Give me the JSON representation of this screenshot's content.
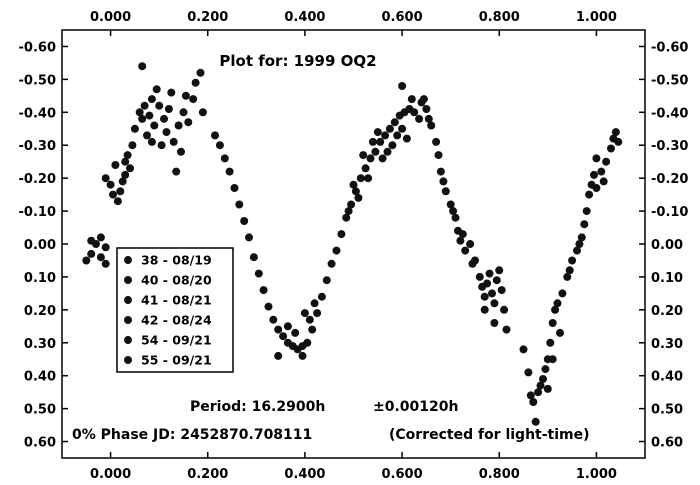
{
  "chart_data": {
    "type": "scatter",
    "title": "Plot for: 1999 OQ2",
    "xlabel": "",
    "ylabel": "",
    "xlim": [
      -0.1,
      1.1
    ],
    "ylim": [
      0.65,
      -0.65
    ],
    "y_inverted": true,
    "grid": false,
    "legend_position": "left-middle",
    "x_ticks": [
      "0.000",
      "0.200",
      "0.400",
      "0.600",
      "0.800",
      "1.000"
    ],
    "x_tick_values": [
      0.0,
      0.2,
      0.4,
      0.6,
      0.8,
      1.0
    ],
    "y_ticks": [
      "-0.60",
      "-0.50",
      "-0.40",
      "-0.30",
      "-0.20",
      "-0.10",
      "0.00",
      "0.10",
      "0.20",
      "0.30",
      "0.40",
      "0.50",
      "0.60"
    ],
    "y_tick_values": [
      -0.6,
      -0.5,
      -0.4,
      -0.3,
      -0.2,
      -0.1,
      0.0,
      0.1,
      0.2,
      0.3,
      0.4,
      0.5,
      0.6
    ],
    "annotations": {
      "period": "Period: 16.2900h",
      "period_error": "±0.00120h",
      "phase": "0% Phase JD:  2452870.708111",
      "correction": "(Corrected for light-time)"
    },
    "series": [
      {
        "name": "38 - 08/19",
        "points": [
          [
            -0.05,
            0.05
          ],
          [
            -0.04,
            0.03
          ],
          [
            -0.03,
            0.0
          ],
          [
            -0.02,
            -0.02
          ],
          [
            -0.01,
            0.01
          ],
          [
            -0.02,
            0.04
          ],
          [
            -0.04,
            -0.01
          ],
          [
            -0.01,
            0.06
          ]
        ]
      },
      {
        "name": "40 - 08/20",
        "points": [
          [
            -0.01,
            -0.2
          ],
          [
            0.0,
            -0.18
          ],
          [
            0.01,
            -0.24
          ],
          [
            0.02,
            -0.16
          ],
          [
            0.03,
            -0.21
          ],
          [
            0.035,
            -0.27
          ],
          [
            0.045,
            -0.3
          ],
          [
            0.015,
            -0.13
          ],
          [
            0.025,
            -0.19
          ],
          [
            0.04,
            -0.23
          ],
          [
            0.005,
            -0.15
          ],
          [
            0.03,
            -0.25
          ]
        ]
      },
      {
        "name": "41 - 08/21",
        "points": [
          [
            0.05,
            -0.35
          ],
          [
            0.06,
            -0.4
          ],
          [
            0.065,
            -0.38
          ],
          [
            0.07,
            -0.42
          ],
          [
            0.08,
            -0.39
          ],
          [
            0.085,
            -0.44
          ],
          [
            0.09,
            -0.36
          ],
          [
            0.1,
            -0.42
          ],
          [
            0.11,
            -0.38
          ],
          [
            0.115,
            -0.34
          ],
          [
            0.12,
            -0.41
          ],
          [
            0.13,
            -0.31
          ],
          [
            0.14,
            -0.36
          ],
          [
            0.15,
            -0.4
          ],
          [
            0.16,
            -0.37
          ],
          [
            0.17,
            -0.44
          ],
          [
            0.065,
            -0.54
          ],
          [
            0.095,
            -0.47
          ],
          [
            0.105,
            -0.3
          ],
          [
            0.135,
            -0.22
          ],
          [
            0.145,
            -0.28
          ],
          [
            0.125,
            -0.46
          ],
          [
            0.155,
            -0.45
          ],
          [
            0.175,
            -0.49
          ],
          [
            0.185,
            -0.52
          ],
          [
            0.19,
            -0.4
          ],
          [
            0.075,
            -0.33
          ],
          [
            0.085,
            -0.31
          ]
        ]
      },
      {
        "name": "42 - 08/24",
        "points": [
          [
            0.215,
            -0.33
          ],
          [
            0.225,
            -0.3
          ],
          [
            0.235,
            -0.26
          ],
          [
            0.245,
            -0.22
          ],
          [
            0.255,
            -0.17
          ],
          [
            0.265,
            -0.12
          ],
          [
            0.275,
            -0.07
          ],
          [
            0.285,
            -0.02
          ],
          [
            0.295,
            0.04
          ],
          [
            0.305,
            0.09
          ],
          [
            0.315,
            0.14
          ],
          [
            0.325,
            0.19
          ],
          [
            0.335,
            0.23
          ],
          [
            0.345,
            0.26
          ],
          [
            0.355,
            0.28
          ],
          [
            0.365,
            0.3
          ],
          [
            0.375,
            0.31
          ],
          [
            0.385,
            0.32
          ],
          [
            0.395,
            0.31
          ],
          [
            0.405,
            0.3
          ],
          [
            0.415,
            0.26
          ],
          [
            0.425,
            0.21
          ],
          [
            0.435,
            0.16
          ],
          [
            0.445,
            0.11
          ],
          [
            0.455,
            0.06
          ],
          [
            0.465,
            0.02
          ],
          [
            0.475,
            -0.03
          ],
          [
            0.485,
            -0.08
          ],
          [
            0.495,
            -0.12
          ],
          [
            0.505,
            -0.16
          ],
          [
            0.515,
            -0.2
          ],
          [
            0.525,
            -0.23
          ],
          [
            0.535,
            -0.26
          ],
          [
            0.545,
            -0.28
          ],
          [
            0.555,
            -0.31
          ],
          [
            0.565,
            -0.33
          ],
          [
            0.575,
            -0.35
          ],
          [
            0.585,
            -0.37
          ],
          [
            0.595,
            -0.39
          ],
          [
            0.605,
            -0.4
          ],
          [
            0.615,
            -0.41
          ],
          [
            0.625,
            -0.4
          ],
          [
            0.635,
            -0.38
          ],
          [
            0.345,
            0.34
          ],
          [
            0.395,
            0.34
          ],
          [
            0.365,
            0.25
          ],
          [
            0.38,
            0.27
          ],
          [
            0.4,
            0.21
          ],
          [
            0.41,
            0.23
          ],
          [
            0.42,
            0.18
          ],
          [
            0.5,
            -0.18
          ],
          [
            0.52,
            -0.27
          ],
          [
            0.54,
            -0.31
          ],
          [
            0.56,
            -0.26
          ],
          [
            0.58,
            -0.3
          ],
          [
            0.6,
            -0.35
          ],
          [
            0.6,
            -0.48
          ],
          [
            0.62,
            -0.44
          ],
          [
            0.59,
            -0.33
          ],
          [
            0.61,
            -0.32
          ],
          [
            0.57,
            -0.28
          ],
          [
            0.55,
            -0.34
          ],
          [
            0.53,
            -0.2
          ],
          [
            0.51,
            -0.14
          ],
          [
            0.49,
            -0.1
          ]
        ]
      },
      {
        "name": "54 - 09/21",
        "points": [
          [
            0.64,
            -0.43
          ],
          [
            0.65,
            -0.41
          ],
          [
            0.66,
            -0.36
          ],
          [
            0.67,
            -0.31
          ],
          [
            0.675,
            -0.27
          ],
          [
            0.68,
            -0.22
          ],
          [
            0.69,
            -0.16
          ],
          [
            0.7,
            -0.12
          ],
          [
            0.71,
            -0.08
          ],
          [
            0.715,
            -0.04
          ],
          [
            0.72,
            -0.01
          ],
          [
            0.73,
            0.02
          ],
          [
            0.74,
            0.0
          ],
          [
            0.75,
            0.05
          ],
          [
            0.76,
            0.1
          ],
          [
            0.765,
            0.13
          ],
          [
            0.77,
            0.16
          ],
          [
            0.775,
            0.12
          ],
          [
            0.78,
            0.09
          ],
          [
            0.785,
            0.15
          ],
          [
            0.79,
            0.18
          ],
          [
            0.795,
            0.11
          ],
          [
            0.8,
            0.08
          ],
          [
            0.805,
            0.14
          ],
          [
            0.81,
            0.2
          ],
          [
            0.815,
            0.26
          ],
          [
            0.79,
            0.24
          ],
          [
            0.77,
            0.2
          ],
          [
            0.745,
            0.06
          ],
          [
            0.725,
            -0.03
          ],
          [
            0.705,
            -0.1
          ],
          [
            0.685,
            -0.19
          ],
          [
            0.655,
            -0.38
          ],
          [
            0.645,
            -0.44
          ]
        ]
      },
      {
        "name": "55 - 09/21",
        "points": [
          [
            0.85,
            0.32
          ],
          [
            0.86,
            0.39
          ],
          [
            0.865,
            0.46
          ],
          [
            0.87,
            0.48
          ],
          [
            0.875,
            0.54
          ],
          [
            0.88,
            0.45
          ],
          [
            0.885,
            0.43
          ],
          [
            0.89,
            0.41
          ],
          [
            0.895,
            0.38
          ],
          [
            0.9,
            0.35
          ],
          [
            0.905,
            0.3
          ],
          [
            0.91,
            0.24
          ],
          [
            0.915,
            0.2
          ],
          [
            0.92,
            0.18
          ],
          [
            0.93,
            0.15
          ],
          [
            0.94,
            0.1
          ],
          [
            0.95,
            0.05
          ],
          [
            0.96,
            0.02
          ],
          [
            0.97,
            -0.02
          ],
          [
            0.975,
            -0.06
          ],
          [
            0.98,
            -0.1
          ],
          [
            0.985,
            -0.15
          ],
          [
            0.99,
            -0.18
          ],
          [
            0.995,
            -0.21
          ],
          [
            1.0,
            -0.17
          ],
          [
            1.01,
            -0.22
          ],
          [
            1.02,
            -0.25
          ],
          [
            1.03,
            -0.29
          ],
          [
            1.035,
            -0.32
          ],
          [
            1.04,
            -0.34
          ],
          [
            1.045,
            -0.31
          ],
          [
            1.0,
            -0.26
          ],
          [
            1.015,
            -0.19
          ],
          [
            0.965,
            0.0
          ],
          [
            0.945,
            0.08
          ],
          [
            0.925,
            0.27
          ],
          [
            0.91,
            0.35
          ],
          [
            0.9,
            0.44
          ]
        ]
      }
    ]
  }
}
